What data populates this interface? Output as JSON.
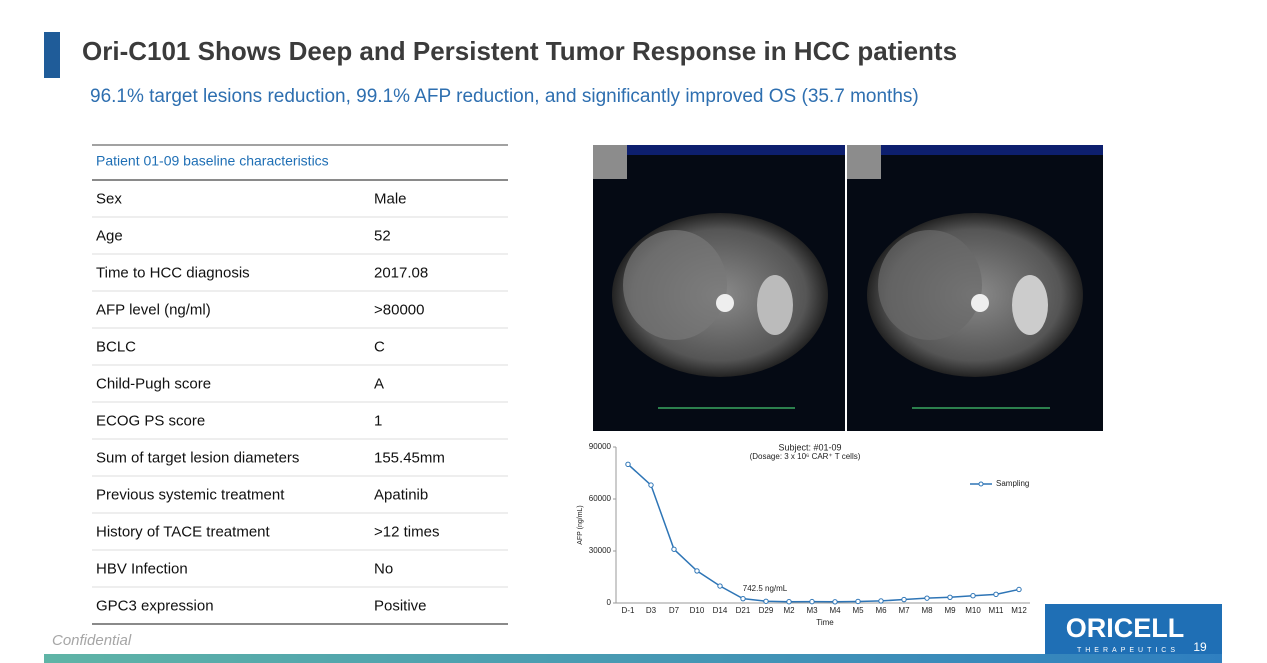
{
  "header": {
    "title": "Ori-C101 Shows Deep and Persistent Tumor Response in HCC patients",
    "subtitle": "96.1% target lesions reduction, 99.1% AFP reduction, and significantly improved OS (35.7 months)"
  },
  "table": {
    "header": "Patient 01-09 baseline characteristics",
    "rows": [
      [
        "Sex",
        "Male"
      ],
      [
        "Age",
        "52"
      ],
      [
        "Time to HCC diagnosis",
        "2017.08"
      ],
      [
        "AFP level (ng/ml)",
        ">80000"
      ],
      [
        "BCLC",
        "C"
      ],
      [
        "Child-Pugh score",
        "A"
      ],
      [
        "ECOG PS score",
        "1"
      ],
      [
        "Sum of target lesion diameters",
        "155.45mm"
      ],
      [
        "Previous systemic treatment",
        "Apatinib"
      ],
      [
        "History of TACE treatment",
        ">12 times"
      ],
      [
        "HBV Infection",
        "No"
      ],
      [
        "GPC3 expression",
        "Positive"
      ]
    ]
  },
  "chart_data": {
    "type": "line",
    "title": "Subject: #01-09",
    "subtitle": "(Dosage: 3 x 10⁶ CAR⁺ T cells)",
    "x_label": "Time",
    "y_label": "AFP (ng/mL)",
    "annotation": "742.5 ng/mL",
    "categories": [
      "D-1",
      "D3",
      "D7",
      "D10",
      "D14",
      "D21",
      "D29",
      "M2",
      "M3",
      "M4",
      "M5",
      "M6",
      "M7",
      "M8",
      "M9",
      "M10",
      "M11",
      "M12"
    ],
    "series": [
      {
        "name": "Sampling",
        "color": "#2e75b6",
        "values": [
          80000,
          68000,
          31000,
          18500,
          9800,
          2500,
          1000,
          742.5,
          800,
          700,
          900,
          1200,
          2000,
          2800,
          3300,
          4200,
          5000,
          7800
        ]
      }
    ],
    "ylim": [
      0,
      90000
    ],
    "yticks": [
      0,
      30000,
      60000,
      90000
    ],
    "legend": "upper right",
    "grid": false
  },
  "footer": {
    "confidential": "Confidential",
    "logo": "ORICELL",
    "logo_sub": "THERAPEUTICS",
    "page": "19"
  }
}
